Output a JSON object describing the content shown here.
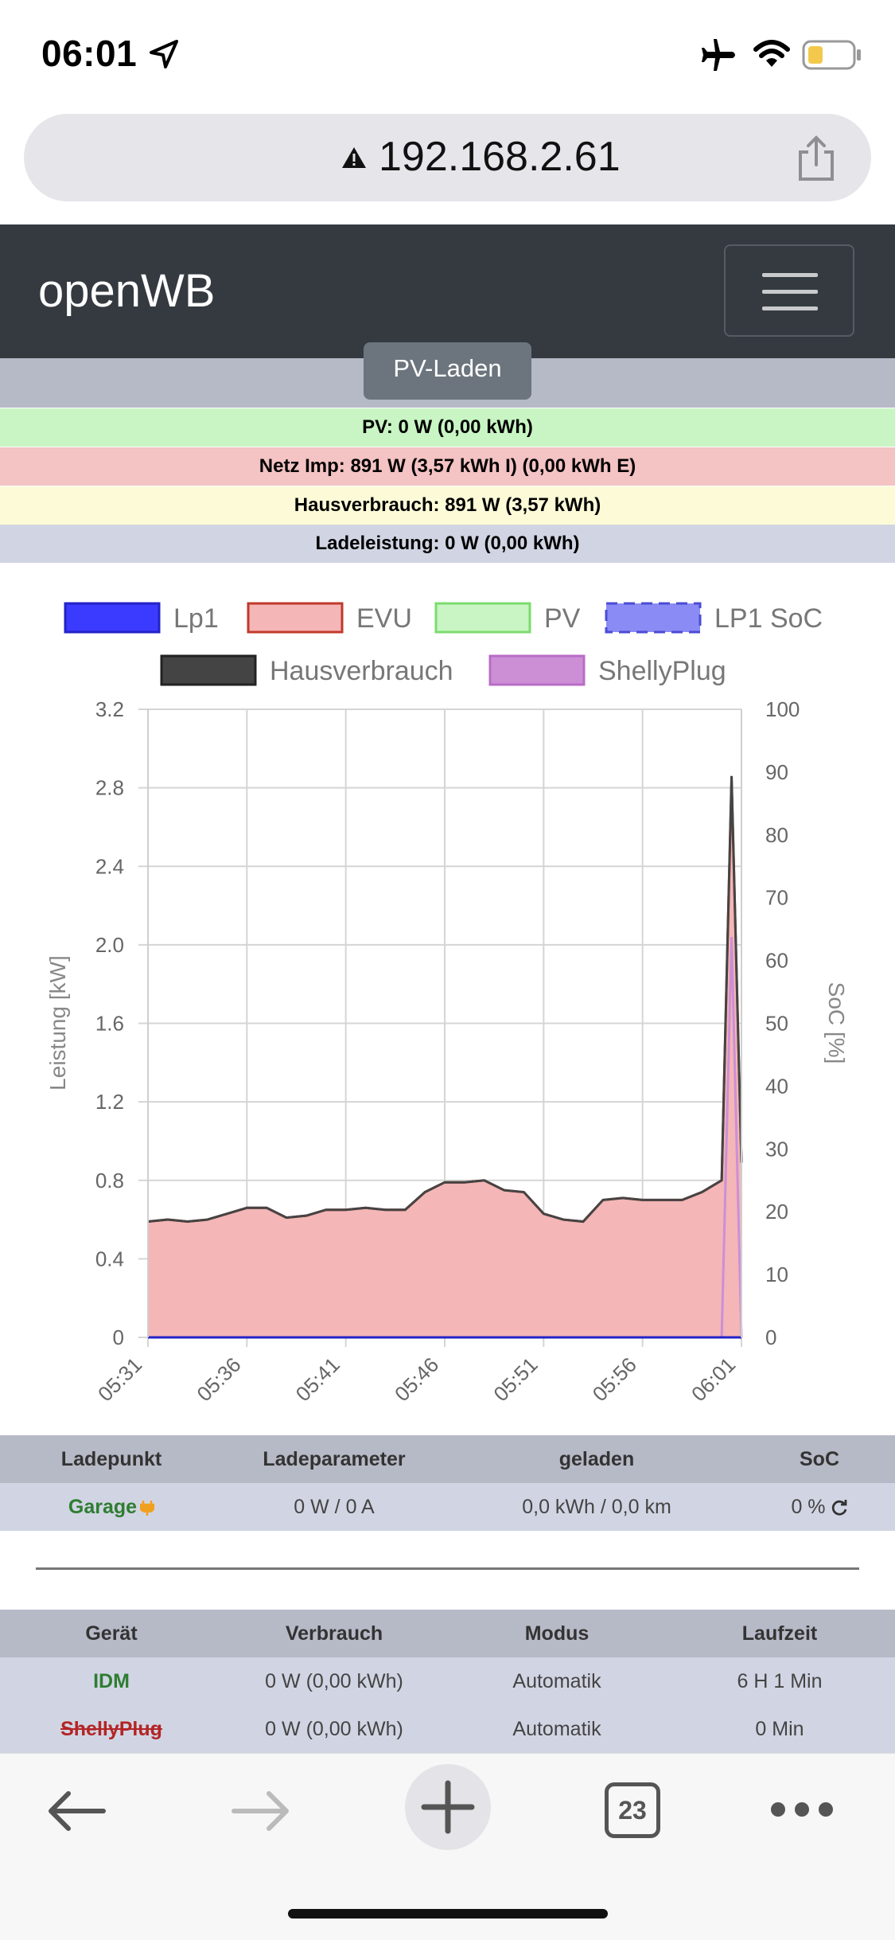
{
  "status_bar": {
    "time": "06:01"
  },
  "browser": {
    "url": "192.168.2.61",
    "tab_count": "23"
  },
  "navbar": {
    "brand": "openWB"
  },
  "mode": {
    "label": "PV-Laden"
  },
  "info": {
    "pv": "PV: 0 W (0,00 kWh)",
    "netz": "Netz Imp: 891 W (3,57 kWh I) (0,00 kWh E)",
    "haus": "Hausverbrauch: 891 W (3,57 kWh)",
    "lade": "Ladeleistung: 0 W (0,00 kWh)"
  },
  "chart_data": {
    "type": "area",
    "legend": [
      "Lp1",
      "EVU",
      "PV",
      "LP1 SoC",
      "Hausverbrauch",
      "ShellyPlug"
    ],
    "legend_placement": "top",
    "colors": {
      "Lp1": "#3b3bff",
      "EVU": "#f4b6b6",
      "EVU_line": "#c0392b",
      "PV": "#c8f5c3",
      "LP1_SoC": "#8b8bf5",
      "Hausverbrauch": "#444444",
      "ShellyPlug": "#cc8fd6"
    },
    "ylabel": "Leistung [kW]",
    "y2label": "SoC [%]",
    "ylim": [
      0,
      3.2
    ],
    "y2lim": [
      0,
      100
    ],
    "yticks": [
      "0",
      "0.4",
      "0.8",
      "1.2",
      "1.6",
      "2.0",
      "2.4",
      "2.8",
      "3.2"
    ],
    "y2ticks": [
      "0",
      "10",
      "20",
      "30",
      "40",
      "50",
      "60",
      "70",
      "80",
      "90",
      "100"
    ],
    "xticks": [
      "05:31",
      "05:36",
      "05:41",
      "05:46",
      "05:51",
      "05:56",
      "06:01"
    ],
    "grid": true,
    "x_minutes": [
      0,
      1,
      2,
      3,
      4,
      5,
      6,
      7,
      8,
      9,
      10,
      11,
      12,
      13,
      14,
      15,
      16,
      17,
      18,
      19,
      20,
      21,
      22,
      23,
      24,
      25,
      26,
      27,
      28,
      29,
      29.5,
      30
    ],
    "series": [
      {
        "name": "EVU",
        "values": [
          0.59,
          0.6,
          0.59,
          0.6,
          0.63,
          0.66,
          0.66,
          0.61,
          0.62,
          0.65,
          0.65,
          0.66,
          0.65,
          0.65,
          0.74,
          0.79,
          0.79,
          0.8,
          0.75,
          0.74,
          0.63,
          0.6,
          0.59,
          0.7,
          0.71,
          0.7,
          0.7,
          0.7,
          0.74,
          0.8,
          2.84,
          0.89
        ]
      },
      {
        "name": "Hausverbrauch",
        "values": [
          0.59,
          0.6,
          0.59,
          0.6,
          0.63,
          0.66,
          0.66,
          0.61,
          0.62,
          0.65,
          0.65,
          0.66,
          0.65,
          0.65,
          0.74,
          0.79,
          0.79,
          0.8,
          0.75,
          0.74,
          0.63,
          0.6,
          0.59,
          0.7,
          0.71,
          0.7,
          0.7,
          0.7,
          0.74,
          0.8,
          2.86,
          0.89
        ]
      },
      {
        "name": "ShellyPlug",
        "values": [
          0,
          0,
          0,
          0,
          0,
          0,
          0,
          0,
          0,
          0,
          0,
          0,
          0,
          0,
          0,
          0,
          0,
          0,
          0,
          0,
          0,
          0,
          0,
          0,
          0,
          0,
          0,
          0,
          0,
          0,
          2.04,
          0
        ]
      },
      {
        "name": "Lp1",
        "values": [
          0,
          0,
          0,
          0,
          0,
          0,
          0,
          0,
          0,
          0,
          0,
          0,
          0,
          0,
          0,
          0,
          0,
          0,
          0,
          0,
          0,
          0,
          0,
          0,
          0,
          0,
          0,
          0,
          0,
          0,
          0,
          0
        ]
      },
      {
        "name": "PV",
        "values": [
          0,
          0,
          0,
          0,
          0,
          0,
          0,
          0,
          0,
          0,
          0,
          0,
          0,
          0,
          0,
          0,
          0,
          0,
          0,
          0,
          0,
          0,
          0,
          0,
          0,
          0,
          0,
          0,
          0,
          0,
          0,
          0
        ]
      }
    ]
  },
  "ladepunkt_table": {
    "headers": [
      "Ladepunkt",
      "Ladeparameter",
      "geladen",
      "SoC"
    ],
    "rows": [
      {
        "name": "Garage",
        "param": "0 W / 0 A",
        "geladen": "0,0 kWh / 0,0 km",
        "soc": "0 %"
      }
    ]
  },
  "geraet_table": {
    "headers": [
      "Gerät",
      "Verbrauch",
      "Modus",
      "Laufzeit"
    ],
    "rows": [
      {
        "name": "IDM",
        "verbrauch": "0 W (0,00 kWh)",
        "modus": "Automatik",
        "laufzeit": "6 H 1 Min"
      },
      {
        "name": "ShellyPlug",
        "verbrauch": "0 W (0,00 kWh)",
        "modus": "Automatik",
        "laufzeit": "0 Min"
      }
    ]
  }
}
